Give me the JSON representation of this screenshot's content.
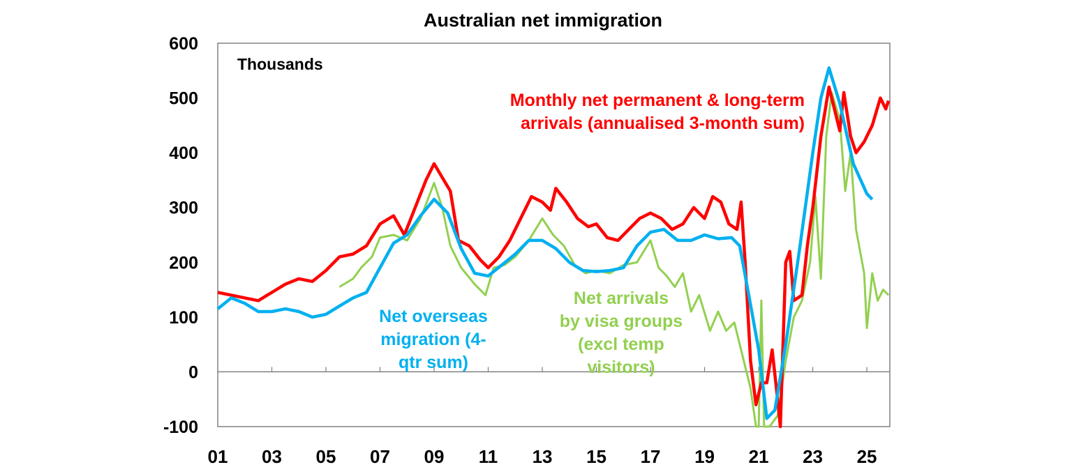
{
  "chart_data": {
    "type": "line",
    "title": "Australian net immigration",
    "ylabel": "Thousands",
    "ylim": [
      -100,
      600
    ],
    "yticks": [
      -100,
      0,
      100,
      200,
      300,
      400,
      500,
      600
    ],
    "xlim": [
      2001,
      2025.85
    ],
    "xtick_labels": [
      "01",
      "03",
      "05",
      "07",
      "09",
      "11",
      "13",
      "15",
      "17",
      "19",
      "21",
      "23",
      "25"
    ],
    "grid": false,
    "series": [
      {
        "name": "Monthly net permanent & long-term arrivals (annualised 3-month sum)",
        "label_lines": [
          "Monthly net permanent & long-term",
          "arrivals (annualised 3-month sum)"
        ],
        "color": "#ff0000",
        "x": [
          2001.0,
          2001.5,
          2002,
          2002.5,
          2003,
          2003.5,
          2004,
          2004.5,
          2005,
          2005.5,
          2006,
          2006.5,
          2007,
          2007.5,
          2007.9,
          2008.3,
          2008.7,
          2009.0,
          2009.3,
          2009.6,
          2009.9,
          2010.3,
          2010.7,
          2011.0,
          2011.4,
          2011.8,
          2012.2,
          2012.6,
          2013.0,
          2013.3,
          2013.5,
          2013.9,
          2014.3,
          2014.7,
          2015.0,
          2015.4,
          2015.8,
          2016.2,
          2016.6,
          2017.0,
          2017.4,
          2017.8,
          2018.2,
          2018.6,
          2019.0,
          2019.3,
          2019.6,
          2019.9,
          2020.2,
          2020.35,
          2020.5,
          2020.7,
          2020.9,
          2021.1,
          2021.3,
          2021.5,
          2021.7,
          2021.8,
          2022.0,
          2022.15,
          2022.3,
          2022.6,
          2022.8,
          2023.0,
          2023.3,
          2023.6,
          2023.8,
          2024.0,
          2024.15,
          2024.4,
          2024.6,
          2024.9,
          2025.2,
          2025.5,
          2025.7,
          2025.8
        ],
        "y": [
          145,
          140,
          135,
          130,
          145,
          160,
          170,
          165,
          185,
          210,
          215,
          230,
          270,
          285,
          250,
          300,
          350,
          380,
          355,
          330,
          240,
          230,
          205,
          190,
          210,
          240,
          280,
          320,
          310,
          295,
          335,
          310,
          280,
          265,
          270,
          245,
          240,
          260,
          280,
          290,
          280,
          260,
          270,
          300,
          280,
          320,
          310,
          270,
          260,
          310,
          200,
          20,
          -60,
          -20,
          -20,
          40,
          -50,
          -100,
          200,
          220,
          130,
          140,
          230,
          300,
          430,
          520,
          480,
          440,
          510,
          430,
          400,
          420,
          450,
          500,
          480,
          495
        ]
      },
      {
        "name": "Net overseas migration (4-qtr sum)",
        "label_lines": [
          "Net overseas",
          "migration (4-",
          "qtr sum)"
        ],
        "color": "#00b0f0",
        "x": [
          2001,
          2001.5,
          2002,
          2002.5,
          2003,
          2003.5,
          2004,
          2004.5,
          2005,
          2005.5,
          2006,
          2006.5,
          2007,
          2007.5,
          2008,
          2008.5,
          2009,
          2009.5,
          2010,
          2010.5,
          2011,
          2011.5,
          2012,
          2012.5,
          2013,
          2013.5,
          2014,
          2014.5,
          2015,
          2015.5,
          2016,
          2016.5,
          2017,
          2017.5,
          2018,
          2018.5,
          2019,
          2019.5,
          2020,
          2020.3,
          2020.6,
          2021,
          2021.3,
          2021.6,
          2022,
          2022.5,
          2023,
          2023.3,
          2023.6,
          2024,
          2024.5,
          2025,
          2025.2
        ],
        "y": [
          115,
          135,
          125,
          110,
          110,
          115,
          110,
          100,
          105,
          120,
          135,
          145,
          190,
          235,
          250,
          285,
          315,
          290,
          225,
          180,
          175,
          195,
          215,
          240,
          240,
          225,
          200,
          185,
          183,
          185,
          190,
          230,
          255,
          260,
          240,
          240,
          250,
          243,
          245,
          230,
          150,
          40,
          -85,
          -70,
          50,
          220,
          400,
          500,
          555,
          490,
          380,
          325,
          315
        ]
      },
      {
        "name": "Net arrivals by visa groups (excl temp visitors)",
        "label_lines": [
          "Net arrivals",
          "by visa groups",
          "(excl temp",
          "visitors)"
        ],
        "color": "#92d050",
        "x": [
          2005.5,
          2006,
          2006.3,
          2006.7,
          2007,
          2007.5,
          2008,
          2008.5,
          2009,
          2009.3,
          2009.6,
          2010,
          2010.5,
          2010.9,
          2011.2,
          2011.6,
          2012,
          2012.5,
          2013,
          2013.4,
          2013.8,
          2014.2,
          2014.6,
          2015,
          2015.5,
          2016,
          2016.5,
          2017,
          2017.3,
          2017.6,
          2017.9,
          2018.2,
          2018.5,
          2018.8,
          2019.2,
          2019.5,
          2019.8,
          2020.1,
          2020.5,
          2020.7,
          2020.9,
          2021.0,
          2021.1,
          2021.2,
          2021.4,
          2021.7,
          2022,
          2022.3,
          2022.6,
          2022.9,
          2023.1,
          2023.3,
          2023.5,
          2023.7,
          2024.0,
          2024.2,
          2024.4,
          2024.6,
          2024.9,
          2025.0,
          2025.2,
          2025.4,
          2025.6,
          2025.8
        ],
        "y": [
          155,
          170,
          190,
          210,
          245,
          250,
          240,
          280,
          345,
          300,
          230,
          190,
          160,
          140,
          190,
          195,
          210,
          240,
          280,
          250,
          230,
          195,
          180,
          185,
          180,
          195,
          200,
          240,
          190,
          175,
          155,
          180,
          110,
          140,
          75,
          110,
          75,
          90,
          10,
          -30,
          -100,
          -100,
          130,
          -100,
          -100,
          -80,
          20,
          100,
          130,
          200,
          320,
          170,
          430,
          510,
          460,
          330,
          400,
          260,
          180,
          80,
          180,
          130,
          150,
          140
        ]
      }
    ]
  }
}
